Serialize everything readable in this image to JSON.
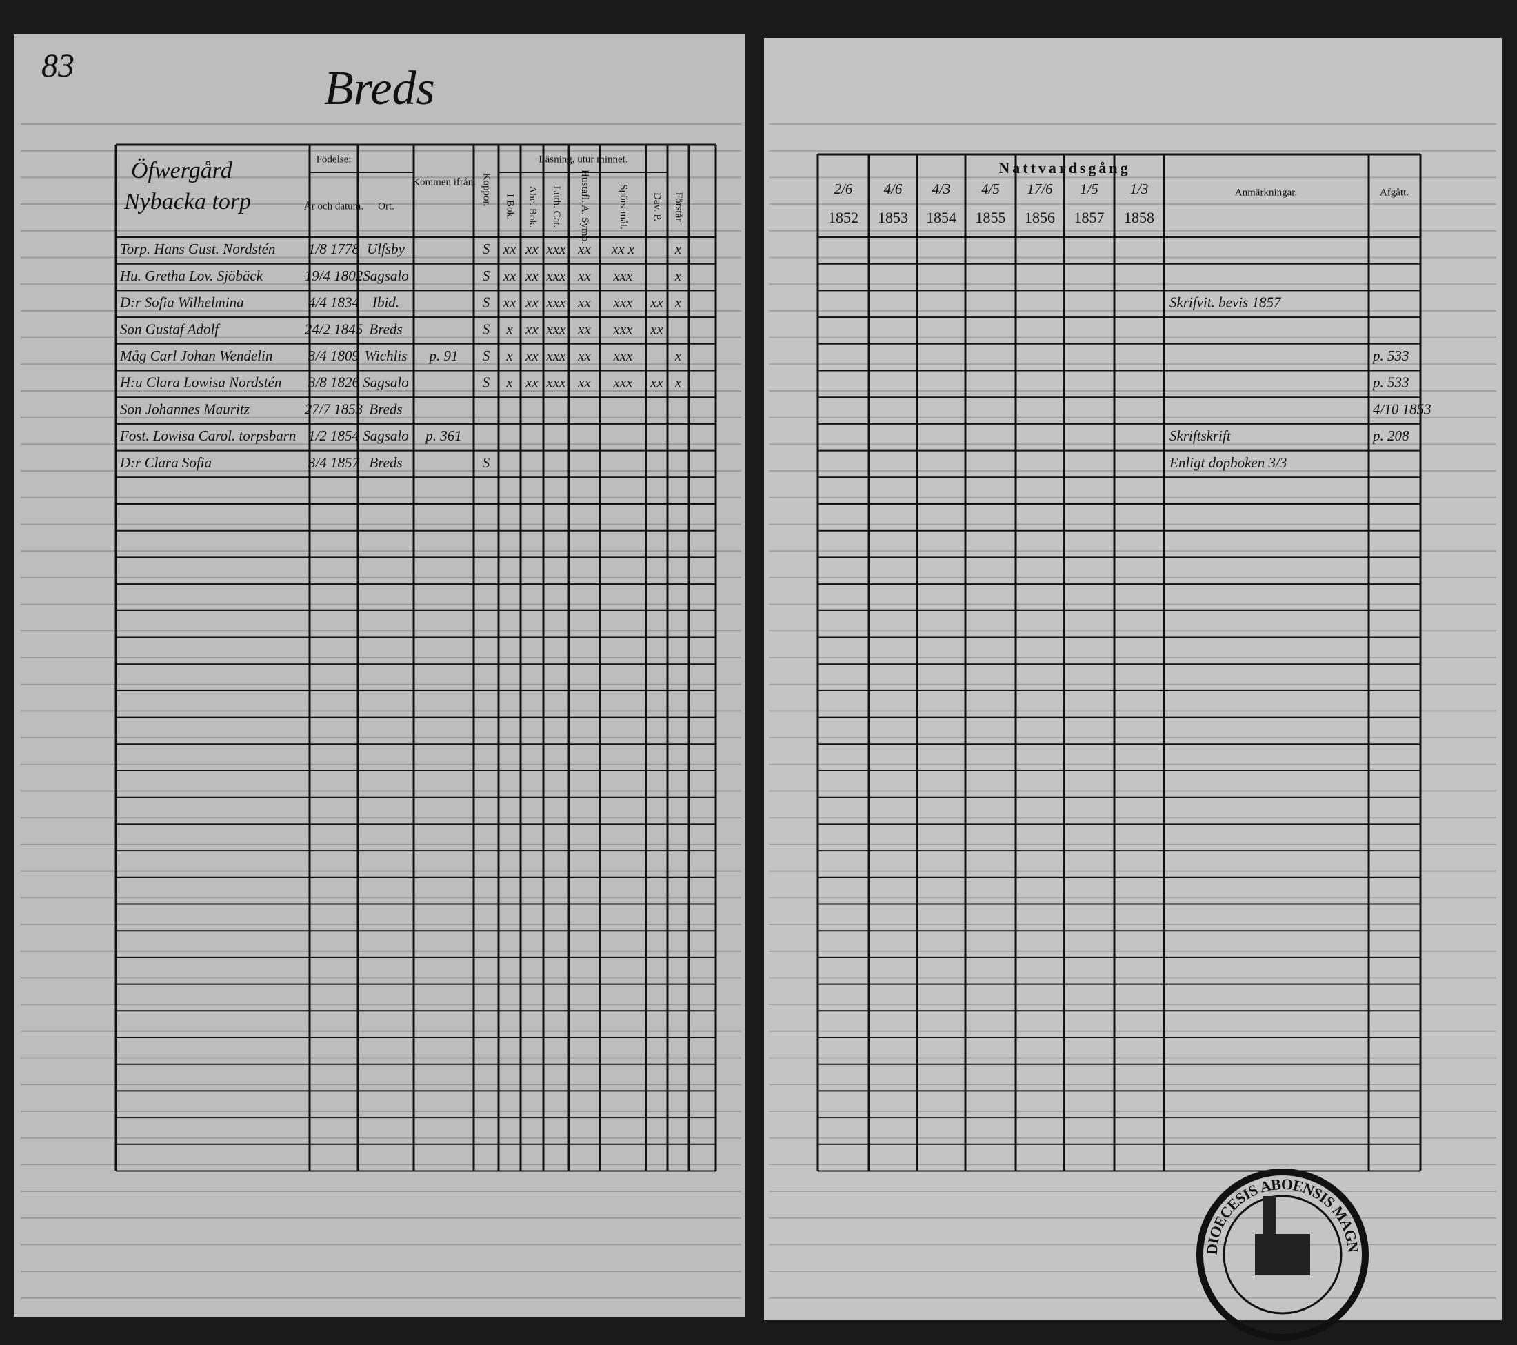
{
  "page_number": "83",
  "parish": "Breds",
  "left_table": {
    "farm": [
      "Öfwergård",
      "Nybacka torp"
    ],
    "headers": {
      "birth": "Födelse:",
      "birth_date": "År och datum.",
      "birth_place": "Ort.",
      "came_from": "Kommen ifrån.",
      "koppor": "Koppor.",
      "reading": "Läsning, utur minnet.",
      "bok": "I Bok.",
      "abc": "Abc. Bok.",
      "luth": "Luth. Cat.",
      "hist": "Hustafl. A. Symb.",
      "spor": "Spörs-mål.",
      "dav": "Dav. P.",
      "forstar": "Förstår"
    },
    "rows": [
      {
        "name": "Torp. Hans Gust. Nordstén",
        "born": "1/8 1778",
        "place": "Ulfsby",
        "koppor": "S",
        "bok": "xx",
        "abc": "xx",
        "luth": "xxx",
        "hist": "xx",
        "spor": "xx x",
        "forstar": "x"
      },
      {
        "name": "Hu. Gretha Lov. Sjöbäck",
        "born": "19/4 1802",
        "place": "Sagsalo",
        "koppor": "S",
        "bok": "xx",
        "abc": "xx",
        "luth": "xxx",
        "hist": "xx",
        "spor": "xxx",
        "forstar": "x"
      },
      {
        "name": "D:r Sofia Wilhelmina",
        "born": "4/4 1834",
        "place": "Ibid.",
        "koppor": "S",
        "bok": "xx",
        "abc": "xx",
        "luth": "xxx",
        "hist": "xx",
        "spor": "xxx",
        "dav": "xx",
        "forstar": "x",
        "remark": "Skrifvit. bevis 1857"
      },
      {
        "name": "Son Gustaf Adolf",
        "born": "24/2 1845",
        "place": "Breds",
        "koppor": "S",
        "bok": "x",
        "abc": "xx",
        "luth": "xxx",
        "hist": "xx",
        "spor": "xxx",
        "dav": "xx"
      },
      {
        "name": "Måg Carl Johan Wendelin",
        "born": "3/4 1809",
        "place": "Wichlis",
        "from": "p. 91",
        "koppor": "S",
        "bok": "x",
        "abc": "xx",
        "luth": "xxx",
        "hist": "xx",
        "spor": "xxx",
        "forstar": "x",
        "moved": "p. 533"
      },
      {
        "name": "H:u Clara Lowisa Nordstén",
        "born": "3/8 1826",
        "place": "Sagsalo",
        "koppor": "S",
        "bok": "x",
        "abc": "xx",
        "luth": "xxx",
        "hist": "xx",
        "spor": "xxx",
        "dav": "xx",
        "forstar": "x",
        "moved": "p. 533"
      },
      {
        "name": "Son Johannes Mauritz",
        "born": "27/7 1853",
        "place": "Breds",
        "moved": "4/10 1853"
      },
      {
        "name": "Fost. Lowisa Carol. torpsbarn",
        "born": "1/2 1854",
        "place": "Sagsalo",
        "from": "p. 361",
        "remark": "Skriftskrift",
        "moved": "p. 208"
      },
      {
        "name": "D:r Clara Sofia",
        "born": "3/4 1857",
        "place": "Breds",
        "koppor": "S",
        "remark": "Enligt dopboken 3/3"
      }
    ]
  },
  "right_table": {
    "title": "Nattvardsgång",
    "dates": [
      "2/6",
      "4/6",
      "4/3",
      "4/5",
      "17/6",
      "1/5",
      "1/3"
    ],
    "years": [
      "1852",
      "1853",
      "1854",
      "1855",
      "1856",
      "1857",
      "1858"
    ],
    "remarks_header": "Anmärkningar.",
    "moved_header": "Afgått."
  },
  "stamp": "DIOECESIS ABOENSIS MAGNI PRINCIP. FINL."
}
